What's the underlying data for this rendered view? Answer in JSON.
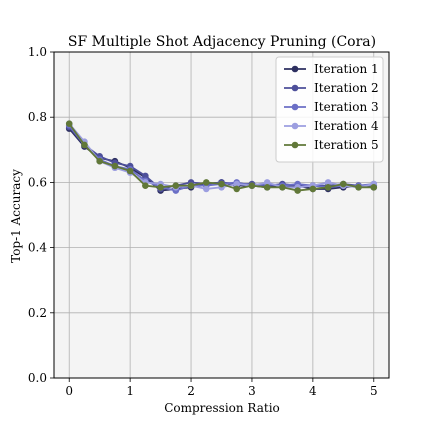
{
  "chart_data": {
    "type": "line",
    "title": "SF Multiple Shot Adjacency Pruning (Cora)",
    "xlabel": "Compression Ratio",
    "ylabel": "Top-1 Accuracy",
    "xlim": [
      -0.25,
      5.25
    ],
    "ylim": [
      0.0,
      1.0
    ],
    "xticks": [
      0,
      1,
      2,
      3,
      4,
      5
    ],
    "yticks": [
      0.0,
      0.2,
      0.4,
      0.6,
      0.8,
      1.0
    ],
    "xtick_labels": [
      "0",
      "1",
      "2",
      "3",
      "4",
      "5"
    ],
    "ytick_labels": [
      "0.0",
      "0.2",
      "0.4",
      "0.6",
      "0.8",
      "1.0"
    ],
    "grid": true,
    "legend_position": "top-right",
    "x": [
      0,
      0.25,
      0.5,
      0.75,
      1.0,
      1.25,
      1.5,
      1.75,
      2.0,
      2.25,
      2.5,
      2.75,
      3.0,
      3.25,
      3.5,
      3.75,
      4.0,
      4.25,
      4.5,
      4.75,
      5.0
    ],
    "series": [
      {
        "name": "Iteration 1",
        "color": "#2d2f60",
        "values": [
          0.765,
          0.71,
          0.675,
          0.665,
          0.645,
          0.615,
          0.575,
          0.58,
          0.585,
          0.595,
          0.6,
          0.59,
          0.59,
          0.585,
          0.59,
          0.59,
          0.58,
          0.58,
          0.585,
          0.59,
          0.585
        ]
      },
      {
        "name": "Iteration 2",
        "color": "#4d4f9a",
        "values": [
          0.77,
          0.715,
          0.68,
          0.66,
          0.65,
          0.62,
          0.58,
          0.59,
          0.6,
          0.595,
          0.6,
          0.595,
          0.595,
          0.59,
          0.595,
          0.59,
          0.59,
          0.59,
          0.595,
          0.59,
          0.59
        ]
      },
      {
        "name": "Iteration 3",
        "color": "#6b6fc6",
        "values": [
          0.775,
          0.715,
          0.67,
          0.65,
          0.64,
          0.605,
          0.585,
          0.575,
          0.59,
          0.59,
          0.595,
          0.6,
          0.59,
          0.595,
          0.59,
          0.595,
          0.59,
          0.585,
          0.59,
          0.59,
          0.595
        ]
      },
      {
        "name": "Iteration 4",
        "color": "#9c9ee0",
        "values": [
          0.78,
          0.725,
          0.665,
          0.645,
          0.63,
          0.6,
          0.595,
          0.585,
          0.59,
          0.58,
          0.585,
          0.595,
          0.59,
          0.6,
          0.585,
          0.585,
          0.59,
          0.6,
          0.59,
          0.585,
          0.595
        ]
      },
      {
        "name": "Iteration 5",
        "color": "#617838",
        "values": [
          0.78,
          0.715,
          0.665,
          0.65,
          0.635,
          0.59,
          0.585,
          0.59,
          0.59,
          0.6,
          0.595,
          0.58,
          0.59,
          0.585,
          0.585,
          0.575,
          0.58,
          0.585,
          0.595,
          0.585,
          0.585
        ]
      }
    ]
  }
}
